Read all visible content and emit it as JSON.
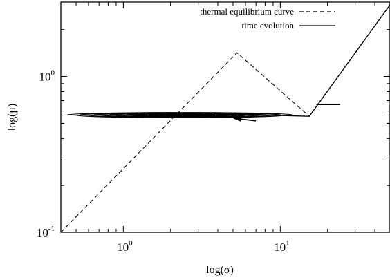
{
  "chart_data": {
    "type": "line",
    "title": "",
    "xlabel": "log(σ)",
    "ylabel": "log(μ)",
    "x_scale": "log",
    "y_scale": "log",
    "xlim": [
      0.4,
      50
    ],
    "ylim": [
      0.1,
      3.0
    ],
    "x_ticks": [
      {
        "value": 1,
        "label": "10",
        "exponent": "0"
      },
      {
        "value": 10,
        "label": "10",
        "exponent": "1"
      }
    ],
    "y_ticks": [
      {
        "value": 0.1,
        "label": "10",
        "exponent": "-1"
      },
      {
        "value": 1,
        "label": "10",
        "exponent": "0"
      }
    ],
    "grid": false,
    "legend_position": "top-right",
    "series": [
      {
        "name": "thermal equilibrium curve",
        "style": "dashed",
        "color": "#000000",
        "x": [
          0.4,
          5.3,
          15.3
        ],
        "y": [
          0.1,
          1.42,
          0.555
        ]
      },
      {
        "name": "time evolution",
        "style": "solid",
        "color": "#000000",
        "x": [
          50.0,
          15.3,
          4.0
        ],
        "y": [
          2.88,
          0.555,
          0.575
        ]
      }
    ],
    "annotations": [
      {
        "type": "arrow",
        "x_from": 7.0,
        "x_to": 5.0,
        "y": 0.53
      },
      {
        "type": "marker",
        "x_from": 17.0,
        "x_to": 24.0,
        "y": 0.66
      }
    ]
  }
}
